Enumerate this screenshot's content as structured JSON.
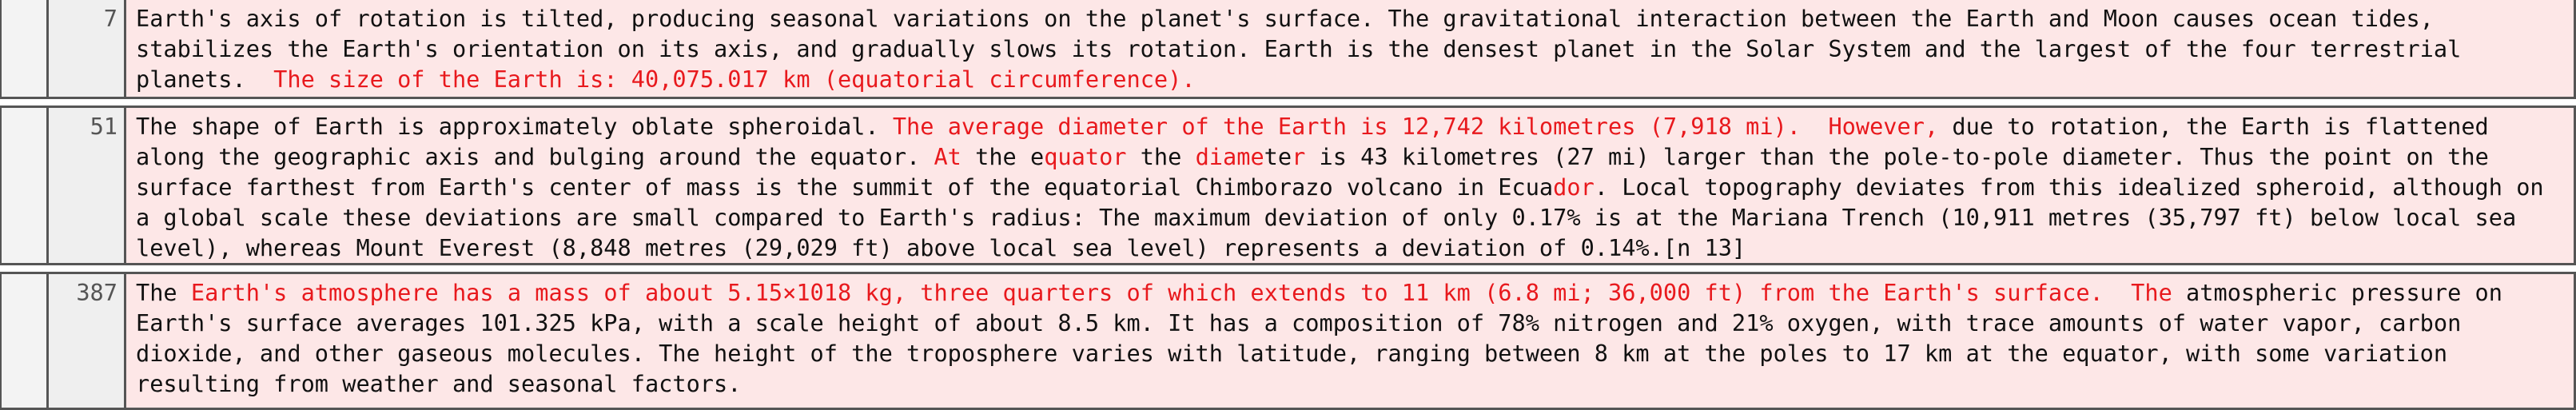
{
  "colors": {
    "removed_bg": "#fde7e7",
    "highlight_text": "#e8191d",
    "gutter_bg": "#efefef",
    "border": "#555555"
  },
  "hunks": [
    {
      "line_number": "7",
      "segments": [
        {
          "text": "Earth's axis of rotation is tilted, producing seasonal variations on the planet's surface. The gravitational interaction between the Earth and Moon causes ocean tides, stabilizes the Earth's orientation on its axis, and gradually slows its rotation. Earth is the densest planet in the Solar System and the largest of the four terrestrial planets.  ",
          "hl": false
        },
        {
          "text": "The size of the Earth is: 40,075.017 km (equatorial circumference).",
          "hl": true
        }
      ]
    },
    {
      "line_number": "51",
      "segments": [
        {
          "text": "The shape of Earth is approximately oblate spheroidal. ",
          "hl": false
        },
        {
          "text": "The average diameter of the Earth is 12,742 kilometres (7,918 mi).  However,",
          "hl": true
        },
        {
          "text": " due to rotation, the Earth is flattened along the geographic axis and bulging around the equator. ",
          "hl": false
        },
        {
          "text": "At",
          "hl": true
        },
        {
          "text": " the e",
          "hl": false
        },
        {
          "text": "quator",
          "hl": true
        },
        {
          "text": " the ",
          "hl": false
        },
        {
          "text": "diame",
          "hl": true
        },
        {
          "text": "te",
          "hl": false
        },
        {
          "text": "r",
          "hl": true
        },
        {
          "text": " is 43 kilometres (27 mi) larger than the pole-to-pole diameter. Thus the point on the surface farthest from Earth's center of mass is the summit of the equatorial Chimborazo volcano in Ecua",
          "hl": false
        },
        {
          "text": "dor",
          "hl": true
        },
        {
          "text": ". Local topography deviates from this idealized spheroid, although on a global scale these deviations are small compared to Earth's radius: The maximum deviation of only 0.17% is at the Mariana Trench (10,911 metres (35,797 ft) below local sea level), whereas Mount Everest (8,848 metres (29,029 ft) above local sea level) represents a deviation of 0.14%.[n 13]",
          "hl": false
        }
      ]
    },
    {
      "line_number": "387",
      "segments": [
        {
          "text": "The ",
          "hl": false
        },
        {
          "text": "Earth's atmosphere has a mass of about 5.15×1018 kg, three quarters of which extends to 11 km (6.8 mi; 36,000 ft) from the Earth's surface.  The",
          "hl": true
        },
        {
          "text": " atmospheric pressure on Earth's surface averages 101.325 kPa, with a scale height of about 8.5 km. It has a composition of 78% nitrogen and 21% oxygen, with trace amounts of water vapor, carbon dioxide, and other gaseous molecules. The height of the troposphere varies with latitude, ranging between 8 km at the poles to 17 km at the equator, with some variation resulting from weather and seasonal factors.",
          "hl": false
        }
      ]
    }
  ]
}
